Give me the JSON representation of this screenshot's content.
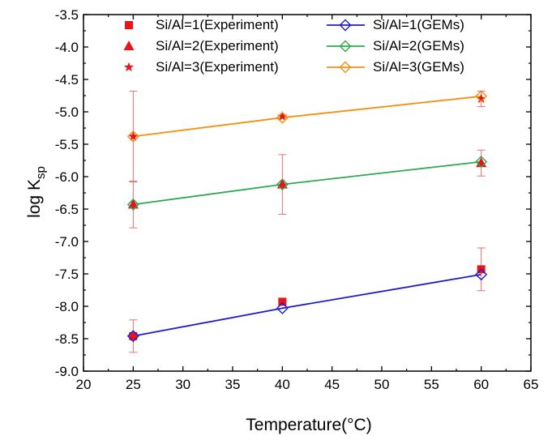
{
  "chart_data": {
    "type": "scatter",
    "xlabel": "Temperature(°C)",
    "ylabel_main": "log K",
    "ylabel_sub": "sp",
    "xlim": [
      20,
      65
    ],
    "ylim": [
      -9.0,
      -3.5
    ],
    "xticks": [
      "20",
      "25",
      "30",
      "35",
      "40",
      "45",
      "50",
      "55",
      "60",
      "65"
    ],
    "yticks": [
      "-3.5",
      "-4.0",
      "-4.5",
      "-5.0",
      "-5.5",
      "-6.0",
      "-6.5",
      "-7.0",
      "-7.5",
      "-8.0",
      "-8.5",
      "-9.0"
    ],
    "grid": false,
    "legend_position": "top",
    "experiment": [
      {
        "name": "Si/Al=1(Experiment)",
        "marker": "square",
        "color": "#e8141c",
        "points": [
          {
            "x": 25,
            "y": -8.46,
            "err": 0.25
          },
          {
            "x": 40,
            "y": -7.93,
            "err": 0
          },
          {
            "x": 60,
            "y": -7.43,
            "err": 0.33
          }
        ]
      },
      {
        "name": "Si/Al=2(Experiment)",
        "marker": "triangle",
        "color": "#e8141c",
        "points": [
          {
            "x": 25,
            "y": -6.43,
            "err": 0.36
          },
          {
            "x": 40,
            "y": -6.12,
            "err": 0.46
          },
          {
            "x": 60,
            "y": -5.79,
            "err": 0.2
          }
        ]
      },
      {
        "name": "Si/Al=3(Experiment)",
        "marker": "star",
        "color": "#e8141c",
        "points": [
          {
            "x": 25,
            "y": -5.38,
            "err": 0.7
          },
          {
            "x": 40,
            "y": -5.07,
            "err": 0
          },
          {
            "x": 60,
            "y": -4.8,
            "err": 0.12
          }
        ]
      }
    ],
    "gems": [
      {
        "name": "Si/Al=1(GEMs)",
        "color": "#1c1ccf",
        "points": [
          {
            "x": 25,
            "y": -8.46
          },
          {
            "x": 40,
            "y": -8.03
          },
          {
            "x": 60,
            "y": -7.51
          }
        ]
      },
      {
        "name": "Si/Al=2(GEMs)",
        "color": "#2fa84f",
        "points": [
          {
            "x": 25,
            "y": -6.43
          },
          {
            "x": 40,
            "y": -6.12
          },
          {
            "x": 60,
            "y": -5.77
          }
        ]
      },
      {
        "name": "Si/Al=3(GEMs)",
        "color": "#f5900f",
        "points": [
          {
            "x": 25,
            "y": -5.38
          },
          {
            "x": 40,
            "y": -5.09
          },
          {
            "x": 60,
            "y": -4.76
          }
        ]
      }
    ]
  }
}
